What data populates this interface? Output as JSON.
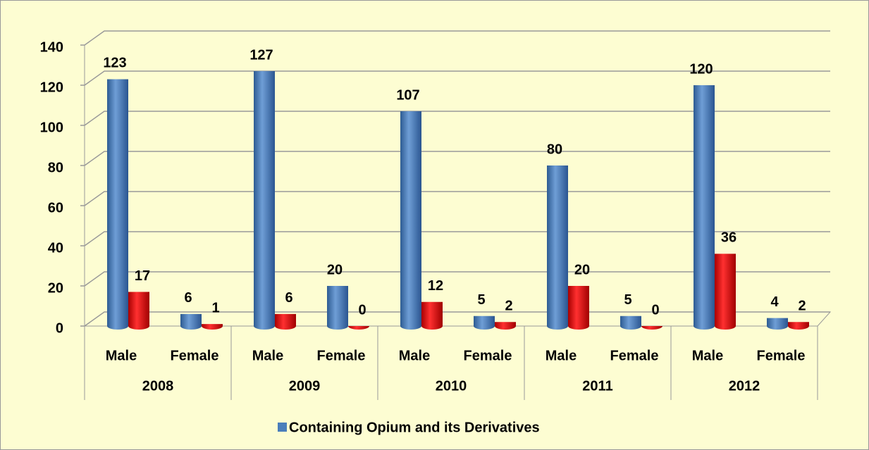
{
  "chart_data": {
    "type": "bar",
    "categories": [
      "Male",
      "Female",
      "Male",
      "Female",
      "Male",
      "Female",
      "Male",
      "Female",
      "Male",
      "Female"
    ],
    "groups": [
      "2008",
      "2009",
      "2010",
      "2011",
      "2012"
    ],
    "series": [
      {
        "name": "Containing Opium and its Derivatives",
        "color": "#4a7ebb",
        "values": [
          123,
          6,
          127,
          20,
          107,
          5,
          80,
          5,
          120,
          4
        ]
      },
      {
        "color": "#e60000",
        "values": [
          17,
          1,
          6,
          0,
          12,
          2,
          20,
          0,
          36,
          2
        ]
      }
    ],
    "ylim": [
      0,
      140
    ],
    "yticks": [
      0,
      20,
      40,
      60,
      80,
      100,
      120,
      140
    ],
    "grid": true,
    "legend": "bottom"
  }
}
